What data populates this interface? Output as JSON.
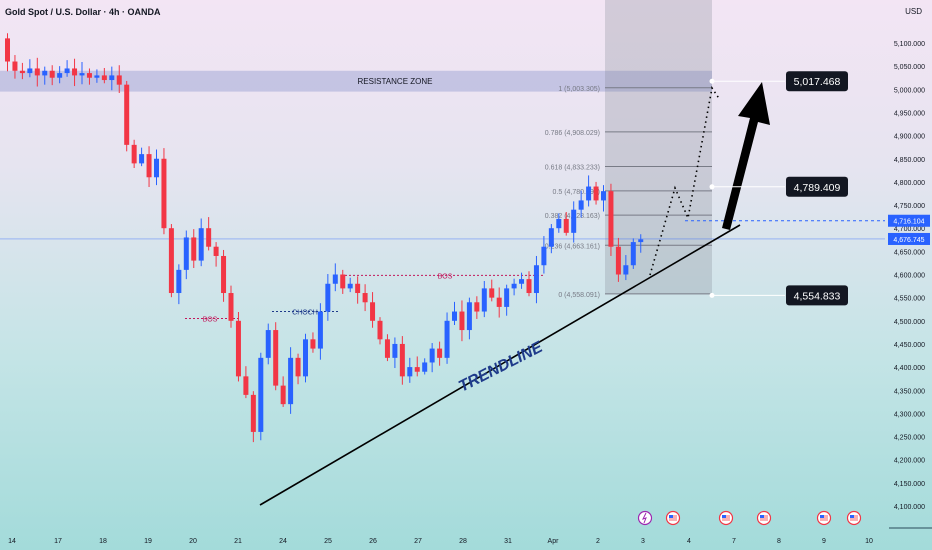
{
  "header": {
    "title": "Gold Spot / U.S. Dollar · 4h · OANDA",
    "currency": "USD"
  },
  "chart_data": {
    "type": "candlestick",
    "title": "Gold Spot / U.S. Dollar · 4h · OANDA",
    "ylim": [
      4050,
      5150
    ],
    "y_ticks": [
      "5,100.000",
      "5,050.000",
      "5,000.000",
      "4,950.000",
      "4,900.000",
      "4,850.000",
      "4,800.000",
      "4,750.000",
      "4,700.000",
      "4,650.000",
      "4,600.000",
      "4,550.000",
      "4,500.000",
      "4,450.000",
      "4,400.000",
      "4,350.000",
      "4,300.000",
      "4,250.000",
      "4,200.000",
      "4,150.000",
      "4,100.000"
    ],
    "x_ticks": [
      "14",
      "17",
      "18",
      "19",
      "20",
      "21",
      "24",
      "25",
      "26",
      "27",
      "28",
      "31",
      "Apr",
      "2",
      "3",
      "4",
      "7",
      "8",
      "9",
      "10"
    ],
    "closes": [
      5110,
      5060,
      5040,
      5035,
      5045,
      5030,
      5040,
      5025,
      5035,
      5045,
      5030,
      5035,
      5025,
      5030,
      5020,
      5030,
      5010,
      4880,
      4840,
      4860,
      4810,
      4850,
      4700,
      4560,
      4610,
      4680,
      4630,
      4700,
      4660,
      4640,
      4560,
      4500,
      4380,
      4340,
      4260,
      4420,
      4480,
      4360,
      4320,
      4420,
      4380,
      4460,
      4440,
      4520,
      4580,
      4600,
      4570,
      4580,
      4560,
      4540,
      4500,
      4460,
      4420,
      4450,
      4380,
      4400,
      4390,
      4410,
      4440,
      4420,
      4500,
      4520,
      4480,
      4540,
      4520,
      4570,
      4550,
      4530,
      4570,
      4580,
      4590,
      4560,
      4620,
      4660,
      4700,
      4720,
      4690,
      4740,
      4760,
      4790,
      4760,
      4780,
      4660,
      4600,
      4620,
      4670,
      4676
    ],
    "up_color": "#2962ff",
    "down_color": "#f23645",
    "resistance_zone": {
      "label": "RESISTANCE ZONE",
      "from": 4995,
      "to": 5040
    },
    "fib_levels": [
      {
        "label": "1 (5,003.305)",
        "price": 5003.305
      },
      {
        "label": "0.786 (4,908.029)",
        "price": 4908.029
      },
      {
        "label": "0.618 (4,833.233)",
        "price": 4833.233
      },
      {
        "label": "0.5 (4,780.698)",
        "price": 4780.698
      },
      {
        "label": "0.382 (4,728.163)",
        "price": 4728.163
      },
      {
        "label": "0.236 (4,663.161)",
        "price": 4663.161
      },
      {
        "label": "0 (4,558.091)",
        "price": 4558.091
      }
    ],
    "targets": [
      {
        "label": "5,017.468",
        "price": 5017.468
      },
      {
        "label": "4,789.409",
        "price": 4789.409
      },
      {
        "label": "4,554.833",
        "price": 4554.833
      }
    ],
    "price_tags": [
      {
        "label": "4,716.104",
        "price": 4716.104
      },
      {
        "label": "4,676.745",
        "price": 4676.745
      }
    ],
    "annotations": {
      "trendline": "TRENDLINE",
      "bos": "BOS",
      "choch": "CHOCH"
    }
  },
  "events": [
    "lightning",
    "us-flag",
    "us-flag",
    "us-flag",
    "us-flag",
    "us-flag"
  ]
}
